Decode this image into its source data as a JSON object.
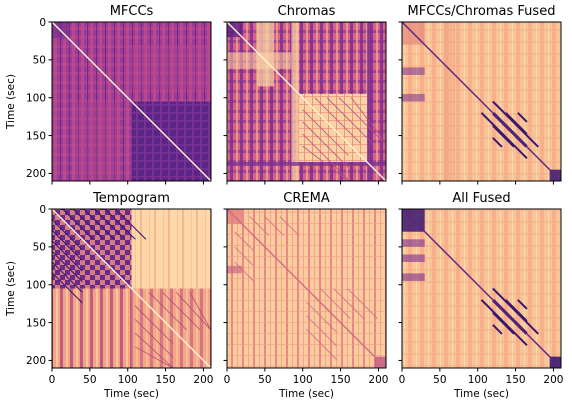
{
  "figure": {
    "panel_titles": [
      "MFCCs",
      "Chromas",
      "MFCCs/Chromas Fused",
      "Tempogram",
      "CREMA",
      "All Fused"
    ],
    "ylabel": "Time (sec)",
    "xlabel": "Time (sec)",
    "ticks": [
      "0",
      "50",
      "100",
      "150",
      "200"
    ],
    "colormap": "magma",
    "colors": {
      "light": "#fcd29c",
      "mid": "#f08a72",
      "pink": "#d8608a",
      "purple": "#8c3a9a",
      "dark": "#3b1870"
    }
  },
  "chart_data": {
    "type": "heatmap",
    "layout": "2 rows x 3 columns",
    "colormap": "magma",
    "x_range": [
      0,
      210
    ],
    "y_range": [
      0,
      210
    ],
    "y_inverted": true,
    "xlabel": "Time (sec)",
    "ylabel": "Time (sec)",
    "x_ticks": [
      0,
      50,
      100,
      150,
      200
    ],
    "y_ticks": [
      0,
      50,
      100,
      150,
      200
    ],
    "panels": [
      {
        "title": "MFCCs",
        "description": "dense purple/pink self-similarity with bright main diagonal; dark blocks in lower right quadrant",
        "blocks": [
          [
            0,
            210,
            0,
            210,
            "purple"
          ],
          [
            105,
            210,
            105,
            210,
            "dark"
          ]
        ]
      },
      {
        "title": "Chromas",
        "description": "striped pink/purple texture with light block at 95-185 s and off-diagonal stripes",
        "blocks": [
          [
            0,
            210,
            0,
            210,
            "pink"
          ],
          [
            95,
            185,
            95,
            185,
            "light"
          ]
        ]
      },
      {
        "title": "MFCCs/Chromas Fused",
        "description": "mostly light peach with parallel dark diagonal stripes at 105-165 s",
        "blocks": [
          [
            0,
            210,
            0,
            210,
            "light"
          ],
          [
            195,
            210,
            195,
            210,
            "dark"
          ]
        ]
      },
      {
        "title": "Tempogram",
        "description": "dark checkerboard block 0-105 s, light block 105-210 s in top right, striped lower half",
        "blocks": [
          [
            0,
            105,
            0,
            105,
            "dark"
          ],
          [
            105,
            210,
            0,
            105,
            "light"
          ]
        ]
      },
      {
        "title": "CREMA",
        "description": "light peach with vertical pink bands and short diagonal stripes",
        "blocks": [
          [
            0,
            210,
            0,
            210,
            "light"
          ]
        ]
      },
      {
        "title": "All Fused",
        "description": "light peach background, dark block at 0-30 s, parallel dark diagonals 105-165 s, dark block at 195-210 s",
        "blocks": [
          [
            0,
            210,
            0,
            210,
            "light"
          ],
          [
            0,
            30,
            0,
            30,
            "dark"
          ],
          [
            195,
            210,
            195,
            210,
            "dark"
          ]
        ]
      }
    ]
  }
}
